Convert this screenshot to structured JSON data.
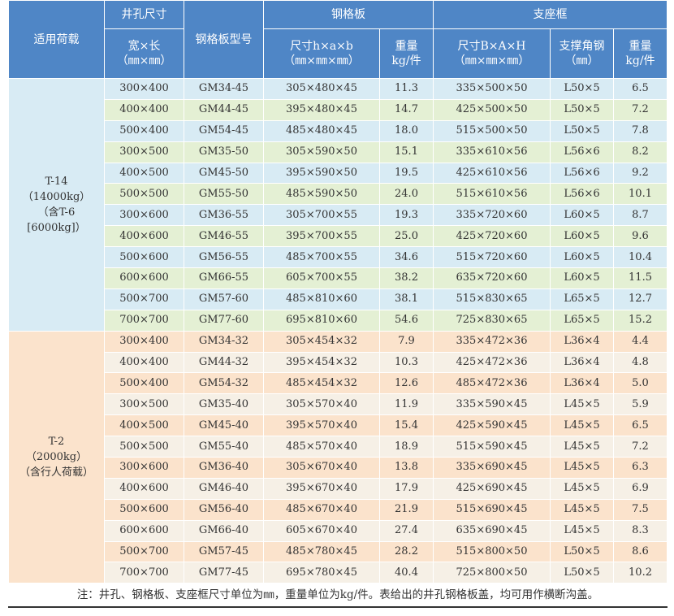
{
  "header": {
    "load": "适用荷载",
    "opening": "井孔尺寸",
    "model": "钢格板型号",
    "grating": "钢格板",
    "frame": "支座框",
    "opening_size": "宽×长\n（㎜×㎜）",
    "grating_size": "尺寸h×a×b\n（㎜×㎜×㎜）",
    "grating_weight": "重量\nkg/件",
    "frame_size": "尺寸B×A×H\n（㎜×㎜×㎜）",
    "angle_steel": "支撑角钢\n（㎜）",
    "frame_weight": "重量\nkg/件"
  },
  "groups": [
    {
      "load": "T-14\n（14000kg）\n（含T-6\n[6000kg]）",
      "rows": [
        [
          "300×400",
          "GM34-45",
          "305×480×45",
          "11.3",
          "335×500×50",
          "L50×5",
          "6.5"
        ],
        [
          "400×400",
          "GM44-45",
          "395×480×45",
          "14.7",
          "425×500×50",
          "L50×5",
          "7.2"
        ],
        [
          "500×400",
          "GM54-45",
          "485×480×45",
          "18.0",
          "515×500×50",
          "L50×5",
          "7.8"
        ],
        [
          "300×500",
          "GM35-50",
          "305×590×50",
          "15.1",
          "335×610×56",
          "L56×6",
          "8.2"
        ],
        [
          "400×500",
          "GM45-50",
          "395×590×50",
          "19.5",
          "425×610×56",
          "L56×6",
          "9.2"
        ],
        [
          "500×500",
          "GM55-50",
          "485×590×50",
          "24.0",
          "515×610×56",
          "L56×6",
          "10.1"
        ],
        [
          "300×600",
          "GM36-55",
          "305×700×55",
          "19.3",
          "335×720×60",
          "L60×5",
          "8.7"
        ],
        [
          "400×600",
          "GM46-55",
          "395×700×55",
          "25.0",
          "425×720×60",
          "L60×5",
          "9.6"
        ],
        [
          "500×600",
          "GM56-55",
          "485×700×55",
          "34.6",
          "515×720×60",
          "L60×5",
          "10.4"
        ],
        [
          "600×600",
          "GM66-55",
          "605×700×55",
          "38.2",
          "635×720×60",
          "L60×5",
          "11.5"
        ],
        [
          "500×700",
          "GM57-60",
          "485×810×60",
          "38.1",
          "515×830×65",
          "L65×5",
          "12.7"
        ],
        [
          "700×700",
          "GM77-60",
          "695×810×60",
          "54.6",
          "725×830×65",
          "L65×5",
          "15.2"
        ]
      ]
    },
    {
      "load": "T-2\n（2000kg）\n（含行人荷载）",
      "rows": [
        [
          "300×400",
          "GM34-32",
          "305×454×32",
          "7.9",
          "335×472×36",
          "L36×4",
          "4.4"
        ],
        [
          "400×400",
          "GM44-32",
          "395×454×32",
          "10.3",
          "425×472×36",
          "L36×4",
          "4.8"
        ],
        [
          "500×400",
          "GM54-32",
          "485×454×32",
          "12.6",
          "485×472×36",
          "L36×4",
          "5.0"
        ],
        [
          "300×500",
          "GM35-40",
          "305×570×40",
          "11.9",
          "335×590×45",
          "L45×5",
          "5.9"
        ],
        [
          "400×500",
          "GM45-40",
          "395×570×40",
          "15.4",
          "425×590×45",
          "L45×5",
          "6.5"
        ],
        [
          "500×500",
          "GM55-40",
          "485×570×40",
          "18.9",
          "515×590×45",
          "L45×5",
          "7.2"
        ],
        [
          "300×600",
          "GM36-40",
          "305×670×40",
          "13.8",
          "335×690×45",
          "L45×5",
          "6.3"
        ],
        [
          "400×600",
          "GM46-40",
          "395×670×40",
          "17.9",
          "425×690×45",
          "L45×5",
          "6.9"
        ],
        [
          "500×600",
          "GM56-40",
          "485×670×40",
          "21.9",
          "515×690×45",
          "L45×5",
          "7.5"
        ],
        [
          "600×600",
          "GM66-40",
          "605×670×40",
          "27.4",
          "635×690×45",
          "L45×5",
          "8.3"
        ],
        [
          "500×700",
          "GM57-45",
          "485×780×45",
          "28.2",
          "515×800×50",
          "L50×5",
          "8.6"
        ],
        [
          "700×700",
          "GM77-45",
          "695×780×45",
          "40.4",
          "725×800×50",
          "L50×5",
          "10.2"
        ]
      ]
    }
  ],
  "footnote": "注：井孔、钢格板、支座框尺寸单位为㎜，重量单位为kg/件。表给出的井孔钢格板盖，均可用作横断沟盖。",
  "colors": {
    "header_bg": "#4f86c6",
    "t14_row_a": "#d8ebf4",
    "t14_row_b": "#e4f0d4",
    "t2_row": "#fbe3cc"
  }
}
